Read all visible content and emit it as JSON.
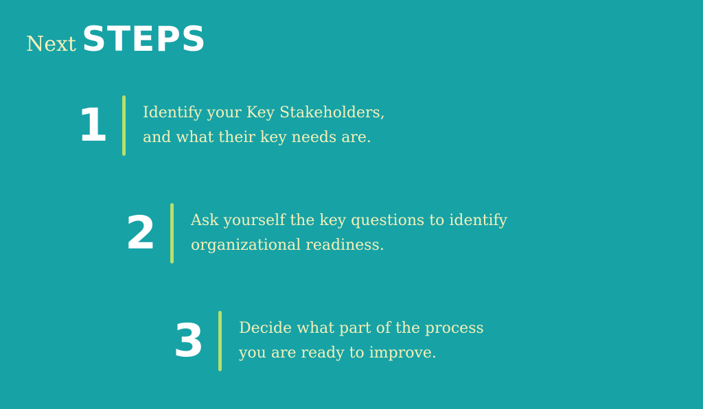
{
  "title": {
    "prefix": "Next",
    "main": "STEPS"
  },
  "steps": [
    {
      "number": "1",
      "lines": [
        "Identify your Key Stakeholders,",
        "and what their key needs are."
      ]
    },
    {
      "number": "2",
      "lines": [
        "Ask yourself the key questions to identify",
        "organizational readiness."
      ]
    },
    {
      "number": "3",
      "lines": [
        "Decide what part of the process",
        "you are ready to improve."
      ]
    }
  ],
  "colors": {
    "background": "#17a2a6",
    "accent_bar": "#b6e06a",
    "body_text": "#f4f1b8",
    "number_text": "#ffffff"
  }
}
